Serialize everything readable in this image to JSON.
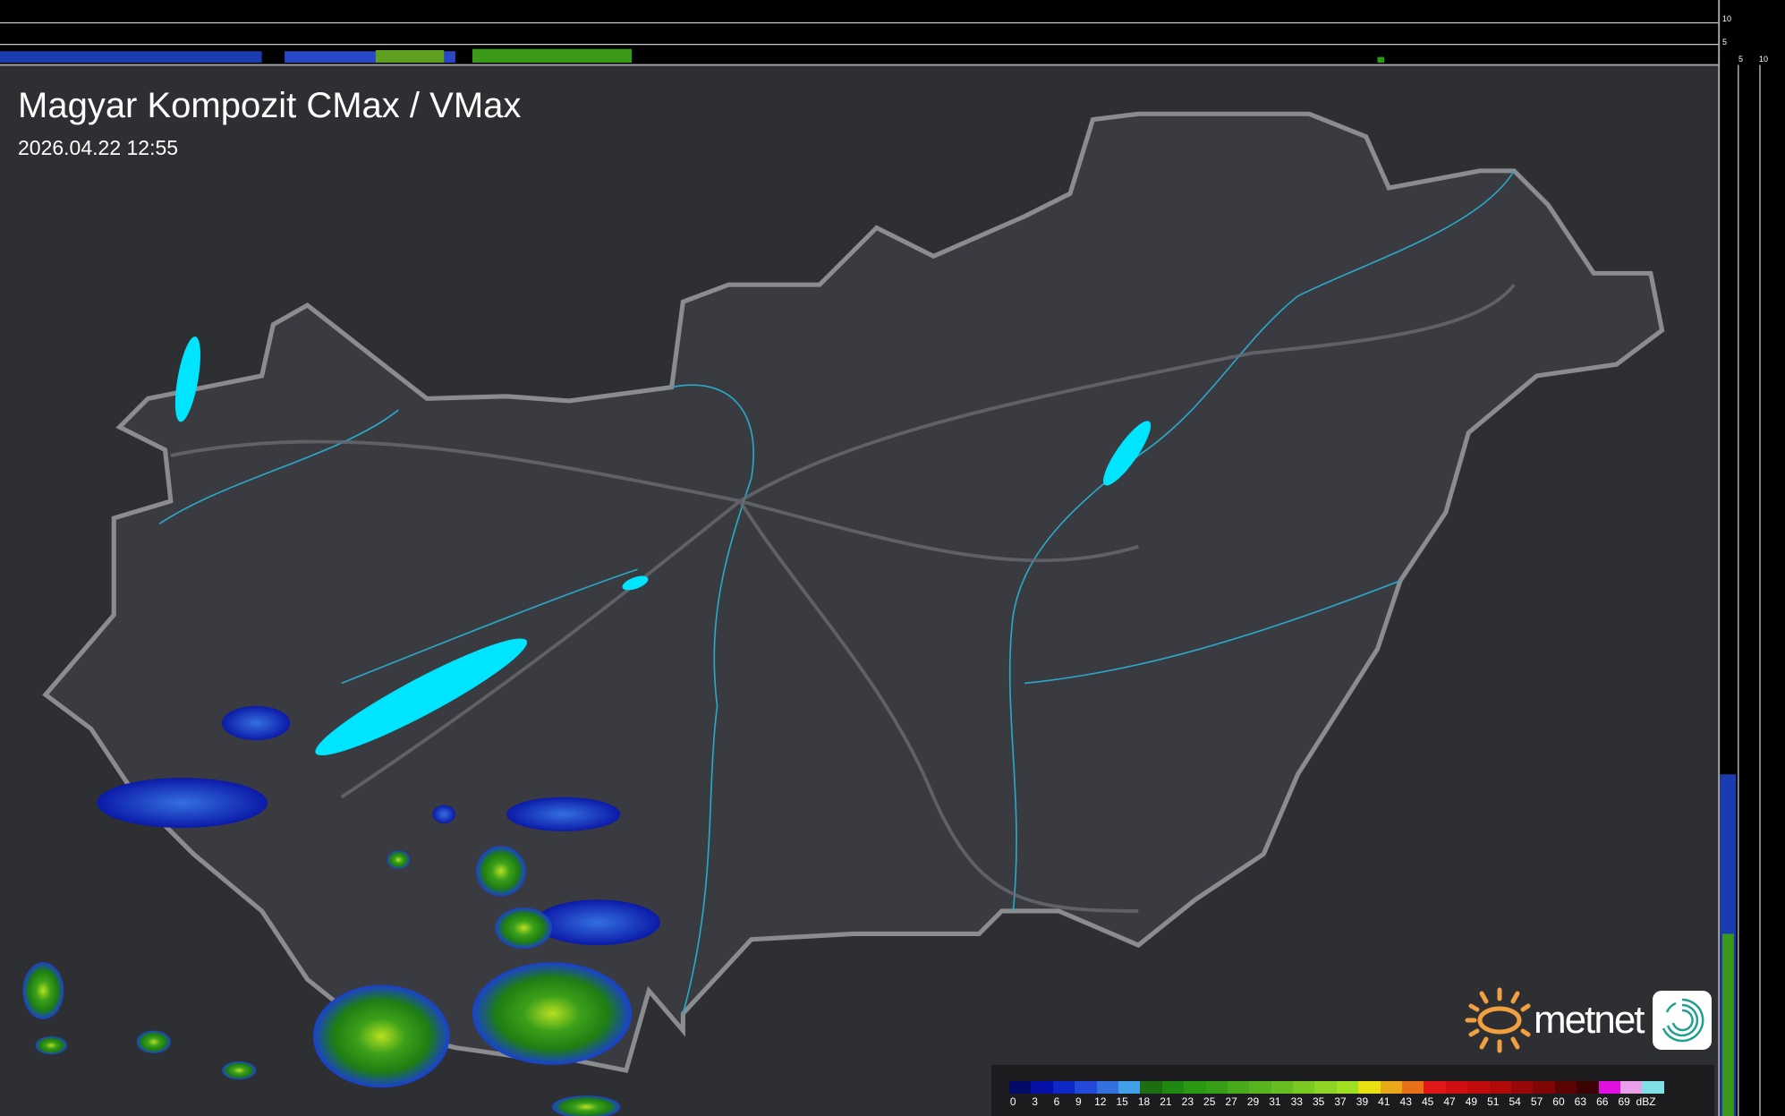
{
  "header": {
    "title": "Magyar Kompozit CMax / VMax",
    "timestamp": "2026.04.22 12:55"
  },
  "side_profile_axes": {
    "top_labels": [
      "10",
      "5"
    ],
    "right_labels": [
      "5",
      "10"
    ]
  },
  "legend": {
    "unit": "dBZ",
    "values": [
      "0",
      "3",
      "6",
      "9",
      "12",
      "15",
      "18",
      "21",
      "23",
      "25",
      "27",
      "29",
      "31",
      "33",
      "35",
      "37",
      "39",
      "41",
      "43",
      "45",
      "47",
      "49",
      "51",
      "54",
      "57",
      "60",
      "63",
      "66",
      "69"
    ],
    "colors": [
      "#020a6a",
      "#0510a8",
      "#0e28c8",
      "#2448d8",
      "#3470e0",
      "#40a0e8",
      "#1c6e10",
      "#1e8812",
      "#2a9a14",
      "#389e18",
      "#48aa1c",
      "#58b41e",
      "#68be20",
      "#7ac822",
      "#8ed424",
      "#a0e022",
      "#e8e010",
      "#e8a818",
      "#e87018",
      "#e01818",
      "#d01010",
      "#c00c0c",
      "#b00a0a",
      "#980808",
      "#800606",
      "#5c0404",
      "#3a0404",
      "#e010e0",
      "#e8a0e8",
      "#80e0e8"
    ]
  },
  "brand": {
    "name": "metnet",
    "sun_color": "#f0a040",
    "app_color": "#20a090"
  },
  "colors": {
    "lakes": "#00e5ff",
    "rivers": "#2aa8c8",
    "border": "#8a8c90",
    "background": "#2e2f33"
  }
}
